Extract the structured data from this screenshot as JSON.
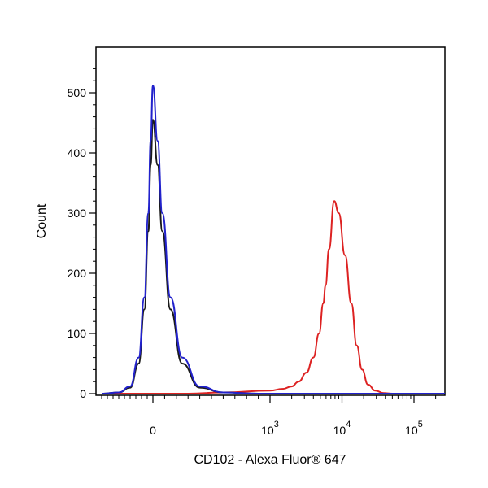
{
  "chart_data": {
    "type": "line",
    "title": "",
    "xlabel": "CD102 - Alexa Fluor® 647",
    "ylabel": "Count",
    "x_scale": "biexponential",
    "xlim": [
      -1000,
      250000
    ],
    "ylim": [
      0,
      550
    ],
    "y_ticks": [
      0,
      100,
      200,
      300,
      400,
      500
    ],
    "x_ticks": [
      {
        "value": 0,
        "label": "0",
        "sup": ""
      },
      {
        "value": 1000,
        "label": "10",
        "sup": "3"
      },
      {
        "value": 10000,
        "label": "10",
        "sup": "4"
      },
      {
        "value": 100000,
        "label": "10",
        "sup": "5"
      }
    ],
    "grid": false,
    "legend": "none",
    "series": [
      {
        "color": "#1a1a1a",
        "x": [
          -900,
          -600,
          -400,
          -250,
          -150,
          -80,
          -40,
          0,
          40,
          80,
          150,
          250,
          400,
          600,
          900,
          1200
        ],
        "y": [
          0,
          2,
          10,
          50,
          140,
          270,
          380,
          455,
          380,
          270,
          140,
          50,
          10,
          2,
          0,
          0
        ]
      },
      {
        "color": "#2222cc",
        "x": [
          -900,
          -600,
          -400,
          -250,
          -150,
          -80,
          -40,
          0,
          40,
          80,
          150,
          250,
          400,
          600,
          900,
          1200
        ],
        "y": [
          0,
          2,
          12,
          60,
          160,
          300,
          420,
          512,
          420,
          300,
          160,
          60,
          12,
          2,
          0,
          0
        ]
      },
      {
        "color": "#dd2222",
        "x": [
          -900,
          300,
          600,
          1000,
          1500,
          2000,
          2500,
          3200,
          4000,
          4800,
          5500,
          5900,
          6600,
          7800,
          9000,
          11000,
          13500,
          16000,
          19000,
          23000,
          29000,
          38000,
          50000,
          70000,
          100000
        ],
        "y": [
          0,
          0,
          2,
          5,
          8,
          12,
          20,
          35,
          60,
          100,
          150,
          180,
          240,
          320,
          300,
          230,
          150,
          80,
          40,
          15,
          5,
          1,
          0,
          0,
          0
        ]
      }
    ]
  }
}
